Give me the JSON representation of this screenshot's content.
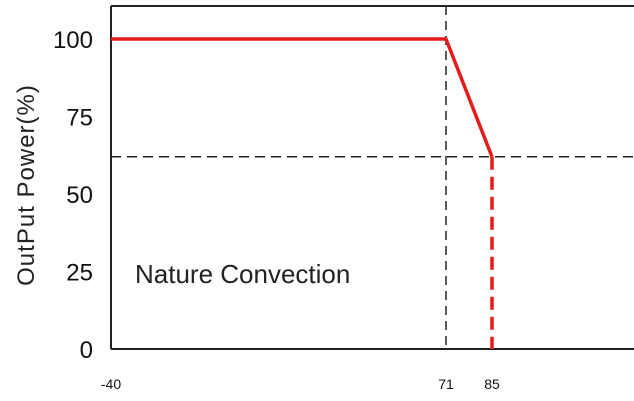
{
  "chart_data": {
    "type": "line",
    "title": "",
    "xlabel": "",
    "ylabel": "OutPut Power(%)",
    "xlim": [
      -40,
      100
    ],
    "ylim": [
      0,
      110
    ],
    "x_ticks": [
      -40,
      71,
      85
    ],
    "y_ticks": [
      0,
      25,
      50,
      75,
      100
    ],
    "grid": false,
    "annotation": "Nature Convection",
    "reference_lines": {
      "vertical_x": 71,
      "horizontal_y": 62
    },
    "series": [
      {
        "x": [
          -40,
          71,
          85
        ],
        "y": [
          100,
          100,
          62
        ],
        "color": "#e31b1b"
      }
    ],
    "dropline": {
      "x": 85,
      "y_from": 62,
      "y_to": 0,
      "color": "#e31b1b"
    },
    "line_color": "#e31b1b"
  }
}
